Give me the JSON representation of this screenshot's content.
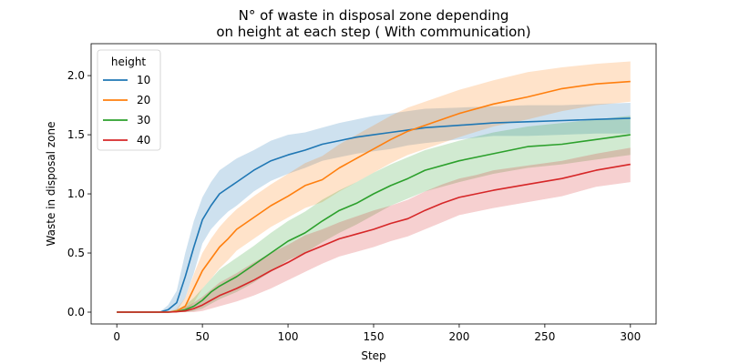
{
  "chart_data": {
    "type": "line",
    "title_line1": "N° of waste in disposal zone depending",
    "title_line2": "on height at each step ( With communication)",
    "xlabel": "Step",
    "ylabel": "Waste in disposal zone",
    "xlim": [
      -15,
      315
    ],
    "ylim": [
      -0.1,
      2.27
    ],
    "xticks": [
      0,
      50,
      100,
      150,
      200,
      250,
      300
    ],
    "xtick_labels": [
      "0",
      "50",
      "100",
      "150",
      "200",
      "250",
      "300"
    ],
    "yticks": [
      0.0,
      0.5,
      1.0,
      1.5,
      2.0
    ],
    "ytick_labels": [
      "0.0",
      "0.5",
      "1.0",
      "1.5",
      "2.0"
    ],
    "grid": false,
    "legend": {
      "title": "height",
      "placement": "upper-left"
    },
    "series": [
      {
        "name": "10",
        "color": "#1f77b4",
        "x": [
          0,
          25,
          30,
          35,
          40,
          45,
          50,
          55,
          60,
          65,
          70,
          80,
          90,
          100,
          110,
          120,
          130,
          140,
          150,
          160,
          170,
          180,
          200,
          220,
          240,
          260,
          280,
          300
        ],
        "y": [
          0,
          0,
          0.02,
          0.08,
          0.3,
          0.55,
          0.78,
          0.9,
          1.0,
          1.05,
          1.1,
          1.2,
          1.28,
          1.33,
          1.37,
          1.42,
          1.45,
          1.48,
          1.5,
          1.52,
          1.54,
          1.56,
          1.58,
          1.6,
          1.61,
          1.62,
          1.63,
          1.64
        ],
        "upper": [
          0,
          0,
          0.06,
          0.18,
          0.5,
          0.77,
          0.97,
          1.1,
          1.2,
          1.25,
          1.3,
          1.37,
          1.45,
          1.5,
          1.52,
          1.56,
          1.6,
          1.63,
          1.66,
          1.68,
          1.7,
          1.72,
          1.73,
          1.74,
          1.75,
          1.75,
          1.76,
          1.77
        ],
        "lower": [
          0,
          0,
          0,
          0.01,
          0.12,
          0.33,
          0.58,
          0.7,
          0.78,
          0.85,
          0.9,
          1.02,
          1.11,
          1.17,
          1.22,
          1.28,
          1.31,
          1.34,
          1.36,
          1.38,
          1.41,
          1.43,
          1.46,
          1.49,
          1.49,
          1.5,
          1.51,
          1.51
        ]
      },
      {
        "name": "20",
        "color": "#ff7f0e",
        "x": [
          0,
          30,
          35,
          40,
          45,
          50,
          55,
          60,
          65,
          70,
          80,
          90,
          100,
          110,
          120,
          130,
          140,
          150,
          160,
          170,
          180,
          200,
          220,
          240,
          260,
          280,
          300
        ],
        "y": [
          0,
          0,
          0.01,
          0.05,
          0.2,
          0.35,
          0.45,
          0.55,
          0.62,
          0.7,
          0.8,
          0.9,
          0.98,
          1.07,
          1.12,
          1.22,
          1.3,
          1.38,
          1.46,
          1.53,
          1.58,
          1.68,
          1.76,
          1.82,
          1.89,
          1.93,
          1.95
        ],
        "upper": [
          0,
          0,
          0.03,
          0.12,
          0.32,
          0.5,
          0.62,
          0.72,
          0.8,
          0.87,
          0.98,
          1.08,
          1.17,
          1.26,
          1.32,
          1.42,
          1.5,
          1.58,
          1.66,
          1.73,
          1.78,
          1.88,
          1.96,
          2.03,
          2.07,
          2.1,
          2.12
        ],
        "lower": [
          0,
          0,
          0,
          0.01,
          0.08,
          0.2,
          0.28,
          0.37,
          0.44,
          0.52,
          0.62,
          0.72,
          0.8,
          0.88,
          0.93,
          1.02,
          1.1,
          1.18,
          1.26,
          1.33,
          1.38,
          1.48,
          1.57,
          1.63,
          1.7,
          1.75,
          1.78
        ]
      },
      {
        "name": "30",
        "color": "#2ca02c",
        "x": [
          0,
          30,
          35,
          40,
          45,
          50,
          55,
          60,
          70,
          80,
          90,
          100,
          110,
          120,
          130,
          140,
          150,
          160,
          170,
          180,
          200,
          220,
          240,
          260,
          280,
          300
        ],
        "y": [
          0,
          0,
          0.005,
          0.02,
          0.05,
          0.1,
          0.17,
          0.22,
          0.3,
          0.4,
          0.5,
          0.6,
          0.67,
          0.77,
          0.86,
          0.92,
          1.0,
          1.07,
          1.13,
          1.2,
          1.28,
          1.34,
          1.4,
          1.42,
          1.46,
          1.5
        ],
        "upper": [
          0,
          0,
          0.02,
          0.06,
          0.12,
          0.2,
          0.28,
          0.36,
          0.46,
          0.56,
          0.67,
          0.77,
          0.85,
          0.95,
          1.03,
          1.1,
          1.18,
          1.25,
          1.31,
          1.37,
          1.45,
          1.52,
          1.57,
          1.6,
          1.63,
          1.66
        ],
        "lower": [
          0,
          0,
          0,
          0,
          0.01,
          0.03,
          0.07,
          0.11,
          0.17,
          0.25,
          0.34,
          0.44,
          0.5,
          0.59,
          0.67,
          0.74,
          0.82,
          0.9,
          0.96,
          1.02,
          1.1,
          1.17,
          1.22,
          1.25,
          1.29,
          1.33
        ]
      },
      {
        "name": "40",
        "color": "#d62728",
        "x": [
          0,
          30,
          35,
          40,
          45,
          50,
          55,
          60,
          70,
          80,
          90,
          100,
          110,
          120,
          130,
          140,
          150,
          160,
          170,
          180,
          190,
          200,
          210,
          220,
          240,
          260,
          280,
          300
        ],
        "y": [
          0,
          0,
          0.003,
          0.01,
          0.03,
          0.06,
          0.1,
          0.14,
          0.2,
          0.27,
          0.35,
          0.42,
          0.5,
          0.56,
          0.62,
          0.66,
          0.7,
          0.75,
          0.79,
          0.86,
          0.92,
          0.97,
          1.0,
          1.03,
          1.08,
          1.13,
          1.2,
          1.25
        ],
        "upper": [
          0,
          0,
          0.01,
          0.04,
          0.08,
          0.13,
          0.19,
          0.25,
          0.33,
          0.42,
          0.5,
          0.57,
          0.65,
          0.7,
          0.76,
          0.81,
          0.86,
          0.9,
          0.95,
          1.02,
          1.08,
          1.13,
          1.16,
          1.2,
          1.24,
          1.28,
          1.34,
          1.39
        ],
        "lower": [
          0,
          0,
          0,
          0,
          0,
          0.01,
          0.03,
          0.05,
          0.09,
          0.14,
          0.2,
          0.27,
          0.34,
          0.41,
          0.47,
          0.51,
          0.55,
          0.6,
          0.64,
          0.7,
          0.76,
          0.82,
          0.85,
          0.88,
          0.93,
          0.98,
          1.06,
          1.1
        ]
      }
    ]
  }
}
